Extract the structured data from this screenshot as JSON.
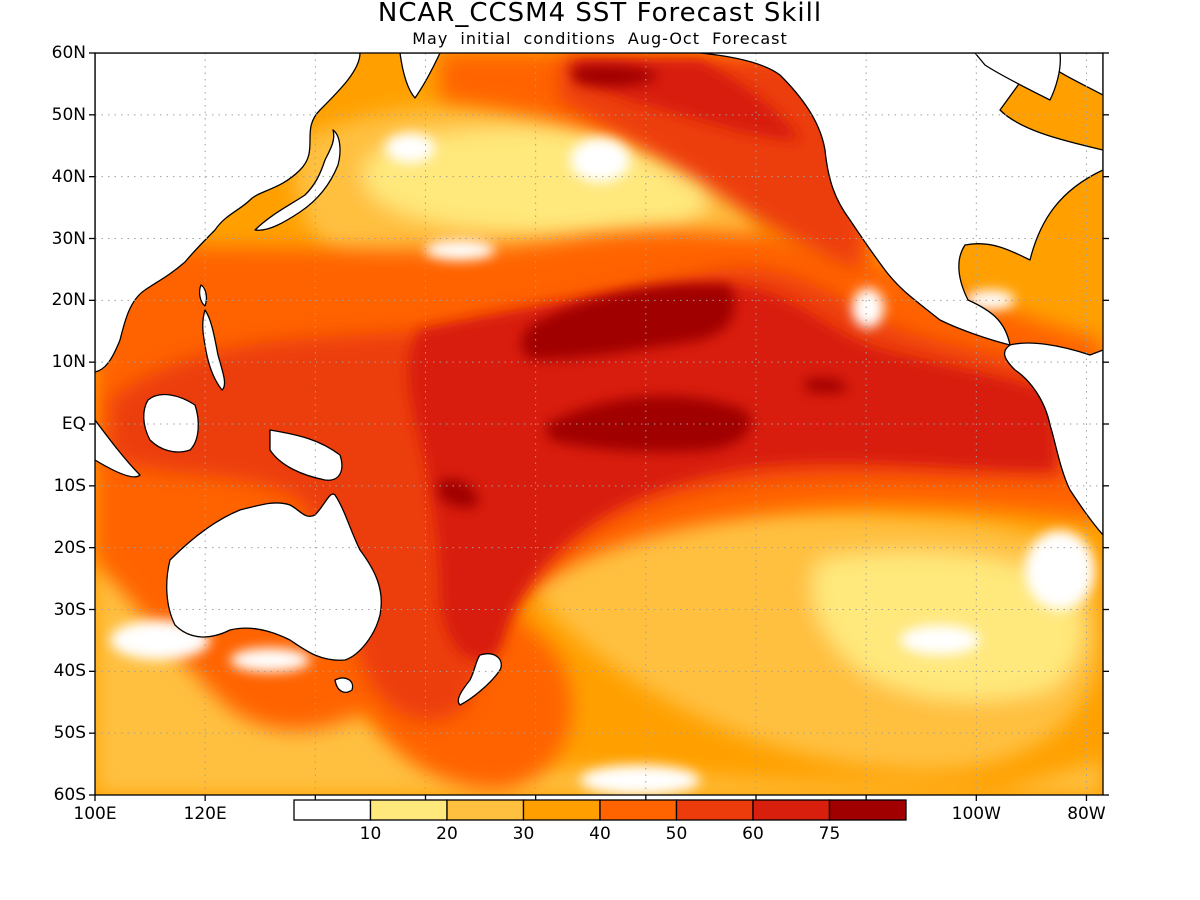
{
  "title": "NCAR_CCSM4  SST Forecast Skill",
  "subtitle": "May initial conditions  Aug-Oct Forecast",
  "y_axis": {
    "ticks": [
      "60N",
      "50N",
      "40N",
      "30N",
      "20N",
      "10N",
      "EQ",
      "10S",
      "20S",
      "30S",
      "40S",
      "50S",
      "60S"
    ]
  },
  "x_axis": {
    "ticks": [
      {
        "label": "100E",
        "lon": 100
      },
      {
        "label": "120E",
        "lon": 120
      },
      {
        "label": "100W",
        "lon": 260
      },
      {
        "label": "80W",
        "lon": 280
      }
    ]
  },
  "extent": {
    "lon_min": 100,
    "lon_max": 283,
    "lat_min": -60,
    "lat_max": 60
  },
  "colorbar": {
    "colors": [
      "#ffffff",
      "#ffe87c",
      "#ffc040",
      "#ffa000",
      "#ff6400",
      "#ec3c0c",
      "#d81e0c",
      "#a00000"
    ],
    "labels": [
      "10",
      "20",
      "30",
      "40",
      "50",
      "60",
      "75"
    ]
  },
  "colors": {
    "base": "#ffa000",
    "coast": "#000000",
    "grid": "#a0a0a0"
  }
}
